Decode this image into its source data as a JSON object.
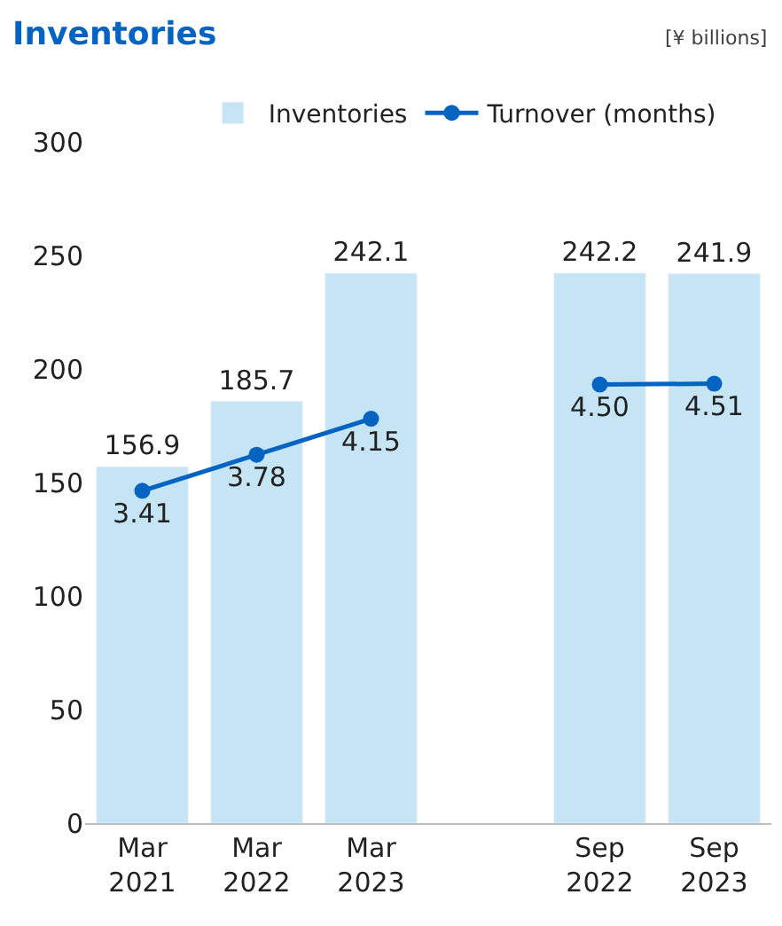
{
  "chart_data": {
    "type": "bar",
    "title": "Inventories",
    "annotations": [
      "[¥ billions]"
    ],
    "categories": [
      "Mar\n2021",
      "Mar\n2022",
      "Mar\n2023",
      null,
      "Sep\n2022",
      "Sep\n2023"
    ],
    "series": [
      {
        "name": "Inventories",
        "color": "#c5e5f5",
        "values": [
          156.9,
          185.7,
          242.1,
          null,
          242.2,
          241.9
        ]
      },
      {
        "name": "Turnover (months)",
        "type": "line",
        "axis": "y2",
        "color": "#0563c1",
        "marker": "circle",
        "values": [
          3.41,
          3.78,
          4.15,
          null,
          4.5,
          4.51
        ],
        "value_labels": [
          "3.41",
          "3.78",
          "4.15",
          null,
          "4.50",
          "4.51"
        ]
      }
    ],
    "ylim": [
      0,
      300
    ],
    "yticks": [
      0,
      50,
      100,
      150,
      200,
      250,
      300
    ],
    "data_labels": true,
    "grid": false,
    "legend": "top"
  }
}
